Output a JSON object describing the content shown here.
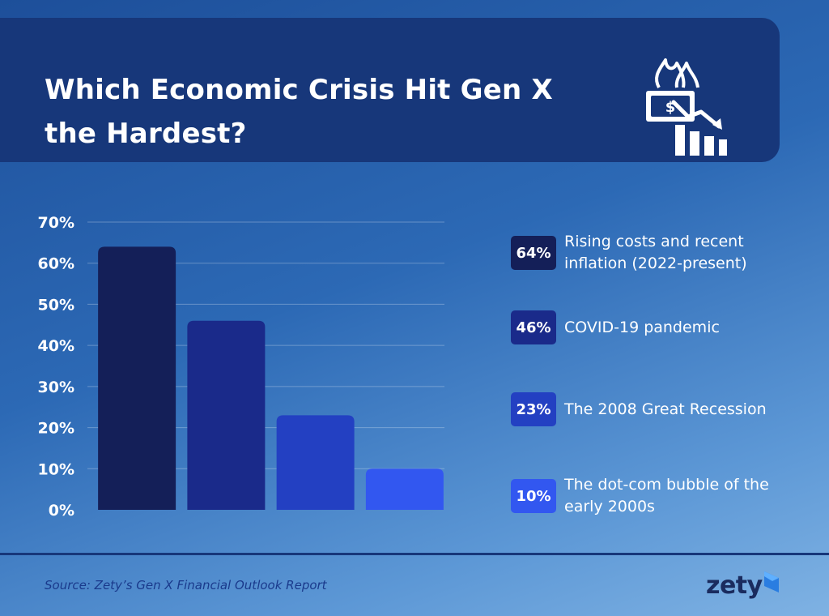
{
  "header": {
    "title": "Which Economic Crisis Hit Gen X the Hardest?",
    "icon": "burning-money-declining-chart-icon"
  },
  "chart_data": {
    "type": "bar",
    "categories": [
      "Rising costs and recent inflation (2022-present)",
      "COVID-19 pandemic",
      "The 2008 Great Recession",
      "The dot-com bubble of the early 2000s"
    ],
    "values": [
      64,
      46,
      23,
      10
    ],
    "value_labels": [
      "64%",
      "46%",
      "23%",
      "10%"
    ],
    "colors": [
      "#141f58",
      "#1a2a8a",
      "#2340c2",
      "#3257f0"
    ],
    "yticks": [
      "0%",
      "10%",
      "20%",
      "30%",
      "40%",
      "50%",
      "60%",
      "70%"
    ],
    "ylim": [
      0,
      70
    ],
    "grid": true,
    "legend_position": "right",
    "title": "Which Economic Crisis Hit Gen X the Hardest?",
    "xlabel": "",
    "ylabel": ""
  },
  "footer": {
    "source": "Source: Zety’s Gen X Financial Outlook Report",
    "logo_text": "zety",
    "logo_icon": "zety-logo-mark-icon"
  }
}
